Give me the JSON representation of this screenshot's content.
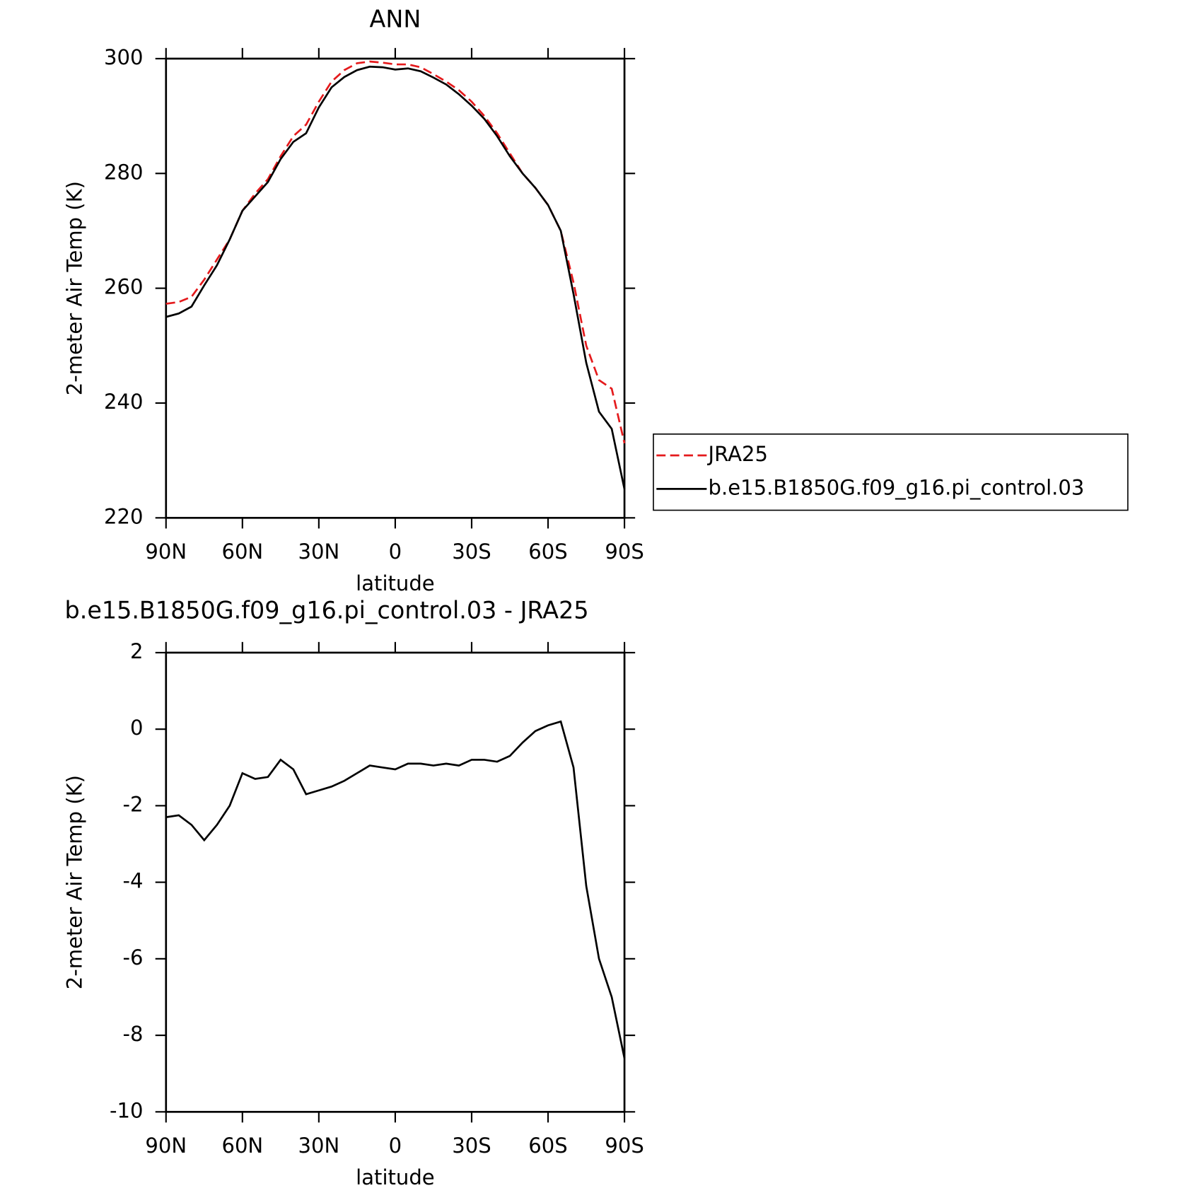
{
  "chart_data": [
    {
      "type": "line",
      "title": "ANN",
      "xlabel": "latitude",
      "ylabel": "2-meter Air Temp (K)",
      "x": [
        90,
        85,
        80,
        75,
        70,
        65,
        60,
        55,
        50,
        45,
        40,
        35,
        30,
        25,
        20,
        15,
        10,
        5,
        0,
        -5,
        -10,
        -15,
        -20,
        -25,
        -30,
        -35,
        -40,
        -45,
        -50,
        -55,
        -60,
        -65,
        -70,
        -75,
        -80,
        -85,
        -90
      ],
      "series": [
        {
          "name": "JRA25",
          "color": "#e41a1c",
          "dashed": true,
          "values": [
            257.3,
            257.6,
            258.5,
            261.5,
            265,
            268.5,
            273.5,
            276.5,
            279,
            283,
            286.5,
            288.5,
            292.5,
            296,
            298,
            299.2,
            299.5,
            299.3,
            299,
            299,
            298.5,
            297.3,
            296,
            294.5,
            292.5,
            290,
            287,
            283.5,
            280,
            277.5,
            274.5,
            270,
            261,
            250,
            244,
            242.5,
            233
          ]
        },
        {
          "name": "b.e15.B1850G.f09_g16.pi_control.03",
          "color": "#000000",
          "dashed": false,
          "values": [
            255,
            255.6,
            256.8,
            260.5,
            264,
            268.5,
            273.5,
            276,
            278.5,
            282.5,
            285.5,
            287,
            291.5,
            295,
            296.8,
            298,
            298.6,
            298.5,
            298.1,
            298.3,
            297.8,
            296.7,
            295.5,
            293.8,
            291.8,
            289.5,
            286.5,
            283,
            280,
            277.5,
            274.5,
            270,
            259,
            247,
            238.5,
            235.5,
            225
          ]
        }
      ],
      "xlim": [
        90,
        -90
      ],
      "xticks": [
        {
          "value": 90,
          "label": "90N"
        },
        {
          "value": 60,
          "label": "60N"
        },
        {
          "value": 30,
          "label": "30N"
        },
        0,
        {
          "value": -30,
          "label": "30S"
        },
        {
          "value": -60,
          "label": "60S"
        },
        {
          "value": -90,
          "label": "90S"
        }
      ],
      "ylim": [
        220,
        300
      ],
      "yticks": [
        220,
        240,
        260,
        280,
        300
      ],
      "legend": "right"
    },
    {
      "type": "line",
      "title": "b.e15.B1850G.f09_g16.pi_control.03 - JRA25",
      "xlabel": "latitude",
      "ylabel": "2-meter Air Temp (K)",
      "x": [
        90,
        85,
        80,
        75,
        70,
        65,
        60,
        55,
        50,
        45,
        40,
        35,
        30,
        25,
        20,
        15,
        10,
        5,
        0,
        -5,
        -10,
        -15,
        -20,
        -25,
        -30,
        -35,
        -40,
        -45,
        -50,
        -55,
        -60,
        -65,
        -70,
        -75,
        -80,
        -85,
        -90
      ],
      "series": [
        {
          "color": "#000000",
          "dashed": false,
          "values": [
            -2.3,
            -2.25,
            -2.5,
            -2.9,
            -2.5,
            -2,
            -1.15,
            -1.3,
            -1.25,
            -0.8,
            -1.05,
            -1.7,
            -1.6,
            -1.5,
            -1.35,
            -1.15,
            -0.95,
            -1,
            -1.05,
            -0.9,
            -0.9,
            -0.95,
            -0.9,
            -0.95,
            -0.8,
            -0.8,
            -0.85,
            -0.7,
            -0.35,
            -0.05,
            0.1,
            0.2,
            -1,
            -4.1,
            -6,
            -7,
            -8.6
          ]
        }
      ],
      "xlim": [
        90,
        -90
      ],
      "xticks": [
        {
          "value": 90,
          "label": "90N"
        },
        {
          "value": 60,
          "label": "60N"
        },
        {
          "value": 30,
          "label": "30N"
        },
        0,
        {
          "value": -30,
          "label": "30S"
        },
        {
          "value": -60,
          "label": "60S"
        },
        {
          "value": -90,
          "label": "90S"
        }
      ],
      "ylim": [
        -10,
        2
      ],
      "yticks": [
        -10,
        -8,
        -6,
        -4,
        -2,
        0,
        2
      ]
    }
  ]
}
